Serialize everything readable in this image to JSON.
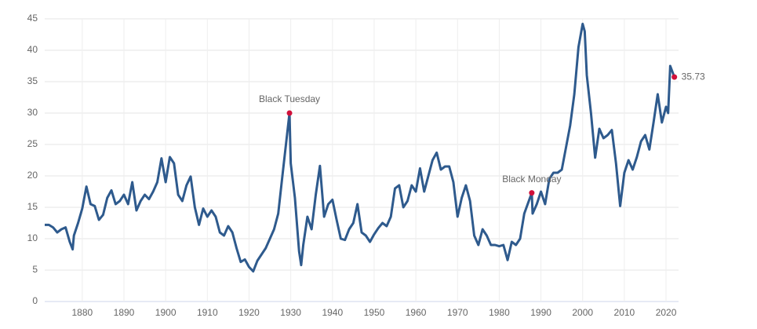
{
  "chart_data": {
    "type": "line",
    "x": [
      1871,
      1872,
      1873,
      1874,
      1875,
      1876,
      1877,
      1877.7,
      1878,
      1879,
      1880,
      1881,
      1882,
      1883,
      1884,
      1885,
      1886,
      1887,
      1888,
      1889,
      1890,
      1891,
      1892,
      1893,
      1894,
      1895,
      1896,
      1897,
      1898,
      1899,
      1900,
      1901,
      1902,
      1903,
      1904,
      1905,
      1906,
      1907,
      1908,
      1909,
      1910,
      1911,
      1912,
      1913,
      1914,
      1915,
      1916,
      1917,
      1918,
      1919,
      1920,
      1921,
      1922,
      1923,
      1924,
      1925,
      1926,
      1927,
      1928,
      1929.7,
      1930,
      1931,
      1932,
      1932.5,
      1933,
      1934,
      1935,
      1936,
      1937,
      1938,
      1939,
      1940,
      1941,
      1942,
      1943,
      1944,
      1945,
      1946,
      1947,
      1948,
      1949,
      1950,
      1951,
      1952,
      1953,
      1954,
      1955,
      1956,
      1957,
      1958,
      1959,
      1960,
      1961,
      1962,
      1963,
      1964,
      1965,
      1966,
      1967,
      1968,
      1969,
      1970,
      1971,
      1972,
      1973,
      1974,
      1975,
      1976,
      1977,
      1978,
      1979,
      1980,
      1981,
      1982,
      1983,
      1984,
      1985,
      1986,
      1987.8,
      1988,
      1989,
      1990,
      1991,
      1992,
      1993,
      1994,
      1995,
      1996,
      1997,
      1998,
      1999,
      2000,
      2000.5,
      2001,
      2002,
      2003,
      2004,
      2005,
      2006,
      2007,
      2008,
      2009,
      2010,
      2011,
      2012,
      2013,
      2014,
      2015,
      2016,
      2017,
      2018,
      2019,
      2020,
      2020.5,
      2021,
      2022
    ],
    "series": [
      {
        "color": "#2e5a8d",
        "values": [
          12.2,
          12.2,
          11.8,
          11.0,
          11.5,
          11.8,
          9.5,
          8.3,
          10.5,
          12.5,
          14.8,
          18.3,
          15.5,
          15.2,
          13.0,
          13.8,
          16.5,
          17.7,
          15.5,
          16.0,
          17.0,
          15.5,
          19.0,
          14.5,
          16.0,
          17.0,
          16.3,
          17.5,
          19.0,
          22.8,
          19.0,
          23.0,
          22.0,
          17.0,
          16.0,
          18.5,
          19.9,
          15.0,
          12.2,
          14.8,
          13.5,
          14.5,
          13.5,
          11.0,
          10.5,
          12.0,
          11.0,
          8.5,
          6.3,
          6.7,
          5.5,
          4.8,
          6.5,
          7.5,
          8.5,
          10.0,
          11.5,
          14.0,
          20.0,
          30.0,
          22.0,
          16.5,
          8.0,
          5.8,
          9.0,
          13.5,
          11.5,
          17.0,
          21.6,
          13.5,
          15.5,
          16.2,
          13.0,
          10.0,
          9.8,
          11.5,
          12.5,
          15.5,
          11.0,
          10.5,
          9.5,
          10.7,
          11.7,
          12.5,
          12.0,
          13.5,
          18.0,
          18.5,
          15.0,
          16.0,
          18.5,
          17.5,
          21.2,
          17.5,
          20.0,
          22.5,
          23.7,
          21.0,
          21.5,
          21.5,
          19.0,
          13.5,
          16.5,
          18.5,
          16.0,
          10.5,
          9.0,
          11.5,
          10.5,
          9.0,
          9.0,
          8.8,
          9.0,
          6.6,
          9.5,
          9.0,
          10.0,
          14.0,
          17.3,
          14.0,
          15.5,
          17.5,
          15.5,
          19.5,
          20.5,
          20.5,
          21.0,
          24.5,
          28.0,
          33.0,
          40.5,
          44.2,
          43.0,
          36.0,
          30.0,
          22.9,
          27.5,
          26.0,
          26.5,
          27.3,
          22.0,
          15.2,
          20.5,
          22.5,
          21.0,
          23.0,
          25.5,
          26.5,
          24.2,
          28.5,
          33.0,
          28.5,
          31.0,
          30.0,
          37.5,
          35.73
        ]
      }
    ],
    "xlim": [
      1871,
      2023
    ],
    "xticks": [
      1880,
      1890,
      1900,
      1910,
      1920,
      1930,
      1940,
      1950,
      1960,
      1970,
      1980,
      1990,
      2000,
      2010,
      2020
    ],
    "ylim": [
      0,
      45
    ],
    "yticks": [
      0,
      5,
      10,
      15,
      20,
      25,
      30,
      35,
      40,
      45
    ],
    "grid": true,
    "annotations": [
      {
        "label": "Black Tuesday",
        "x": 1929.7,
        "y": 30.0,
        "color": "#d0103a"
      },
      {
        "label": "Black Monday",
        "x": 1987.8,
        "y": 17.3,
        "color": "#d0103a"
      },
      {
        "x": 2022,
        "y": 35.73,
        "color": "#d0103a"
      }
    ]
  }
}
